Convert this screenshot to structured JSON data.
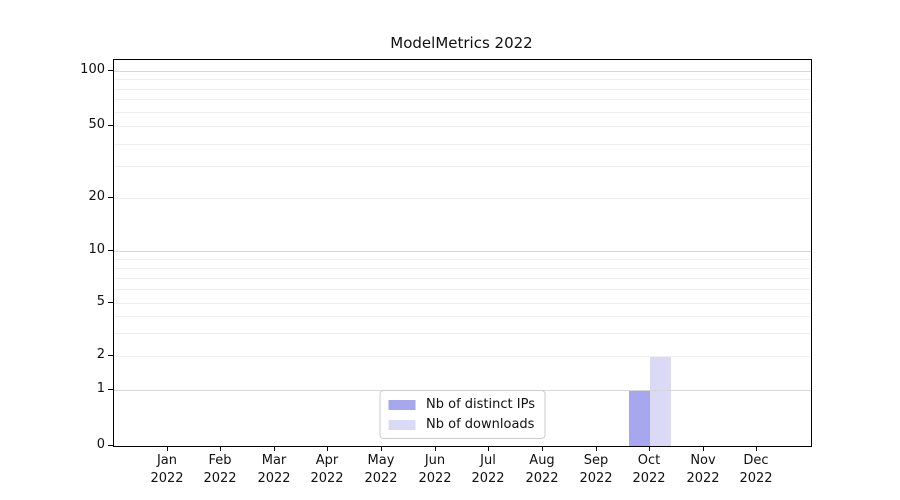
{
  "chart_data": {
    "type": "bar",
    "title": "ModelMetrics 2022",
    "months": [
      "Jan",
      "Feb",
      "Mar",
      "Apr",
      "May",
      "Jun",
      "Jul",
      "Aug",
      "Sep",
      "Oct",
      "Nov",
      "Dec"
    ],
    "year_label": "2022",
    "series": [
      {
        "name": "Nb of distinct IPs",
        "color": "#a7a7f0",
        "values": [
          0,
          0,
          0,
          0,
          0,
          0,
          0,
          0,
          0,
          1,
          0,
          0
        ]
      },
      {
        "name": "Nb of downloads",
        "color": "#dadaf7",
        "values": [
          0,
          0,
          0,
          0,
          0,
          0,
          0,
          0,
          0,
          2,
          0,
          0
        ]
      }
    ],
    "yticks": [
      0,
      1,
      2,
      5,
      10,
      20,
      50,
      100
    ],
    "minor_gridlines": [
      3,
      4,
      6,
      7,
      8,
      9,
      30,
      40,
      60,
      70,
      80,
      90
    ],
    "major_gridlines": [
      1,
      10,
      100
    ],
    "yscale": "symlog",
    "ylim": [
      0,
      100
    ],
    "grid": true,
    "legend_position": "lower center",
    "xlabel": "",
    "ylabel": ""
  }
}
